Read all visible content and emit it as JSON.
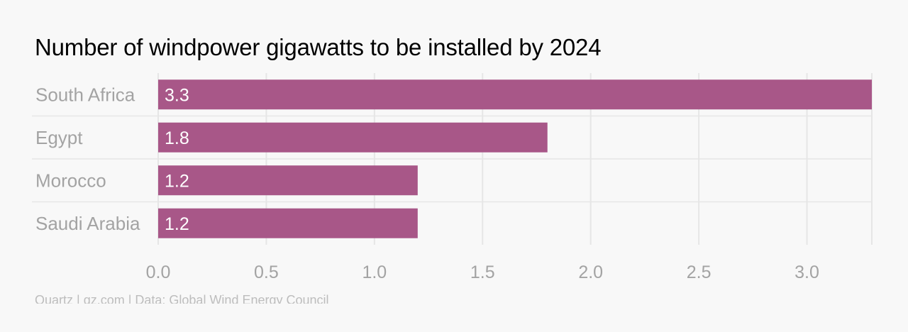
{
  "title": "Number of windpower gigawatts to be installed by 2024",
  "source": "Quartz | qz.com | Data: Global Wind Energy Council",
  "chart_data": {
    "type": "bar",
    "orientation": "horizontal",
    "title": "Number of windpower gigawatts to be installed by 2024",
    "categories": [
      "South Africa",
      "Egypt",
      "Morocco",
      "Saudi Arabia"
    ],
    "values": [
      3.3,
      1.8,
      1.2,
      1.2
    ],
    "value_labels": [
      "3.3",
      "1.8",
      "1.2",
      "1.2"
    ],
    "xlim": [
      0,
      3.3
    ],
    "x_ticks": [
      0.0,
      0.5,
      1.0,
      1.5,
      2.0,
      2.5,
      3.0
    ],
    "x_tick_labels": [
      "0.0",
      "0.5",
      "1.0",
      "1.5",
      "2.0",
      "2.5",
      "3.0"
    ],
    "bar_color": "#a85788",
    "grid": true,
    "xlabel": "",
    "ylabel": ""
  }
}
